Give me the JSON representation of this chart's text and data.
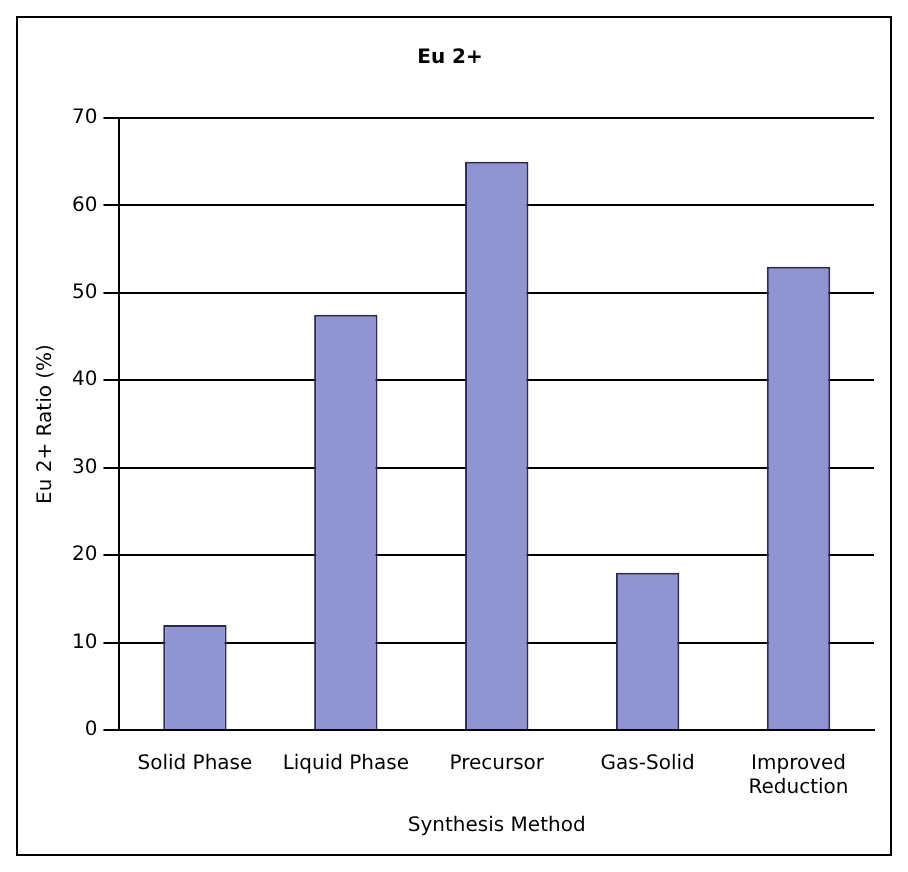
{
  "chart_data": {
    "type": "bar",
    "title": "Eu 2+",
    "xlabel": "Synthesis Method",
    "ylabel": "Eu 2+ Ratio (%)",
    "categories": [
      "Solid Phase",
      "Liquid Phase",
      "Precursor",
      "Gas-Solid",
      "Improved Reduction"
    ],
    "values": [
      12,
      47.5,
      65,
      18,
      53
    ],
    "color": "#9095d2",
    "ylim": [
      0,
      70
    ],
    "yticks": [
      0,
      10,
      20,
      30,
      40,
      50,
      60,
      70
    ],
    "grid": "y",
    "legend": false
  }
}
